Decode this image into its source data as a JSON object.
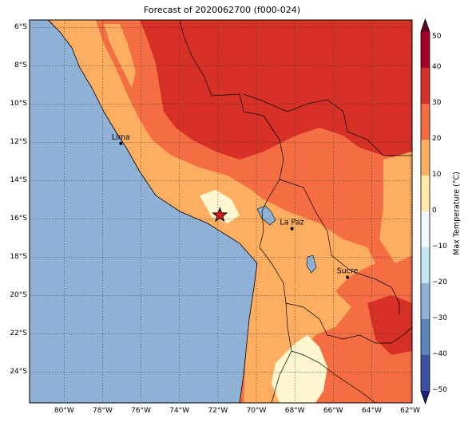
{
  "title": "Forecast of 2020062700 (f000-024)",
  "lat_ticks": [
    "6°S",
    "8°S",
    "10°S",
    "12°S",
    "14°S",
    "16°S",
    "18°S",
    "20°S",
    "22°S",
    "24°S"
  ],
  "lon_ticks": [
    "80°W",
    "78°W",
    "76°W",
    "74°W",
    "72°W",
    "70°W",
    "68°W",
    "66°W",
    "64°W",
    "62°W"
  ],
  "cities": [
    {
      "name": "Lima",
      "lon": -77.05,
      "lat": -12.05
    },
    {
      "name": "La Paz",
      "lon": -68.15,
      "lat": -16.5
    },
    {
      "name": "Sucre",
      "lon": -65.26,
      "lat": -19.04
    }
  ],
  "star_marker": {
    "lon": -71.9,
    "lat": -15.8
  },
  "colorbar": {
    "title": "Max Temperature (°C)",
    "labels": [
      "50",
      "40",
      "30",
      "20",
      "10",
      "0",
      "−10",
      "−20",
      "−30",
      "−40",
      "−50"
    ]
  },
  "colors": {
    "ocean": "#8fb1d6",
    "gt30": "#d73027",
    "20-30": "#f46d43",
    "10-20": "#fdae61",
    "0-10": "#fff7cf",
    "lake": "#8fb1d6"
  }
}
